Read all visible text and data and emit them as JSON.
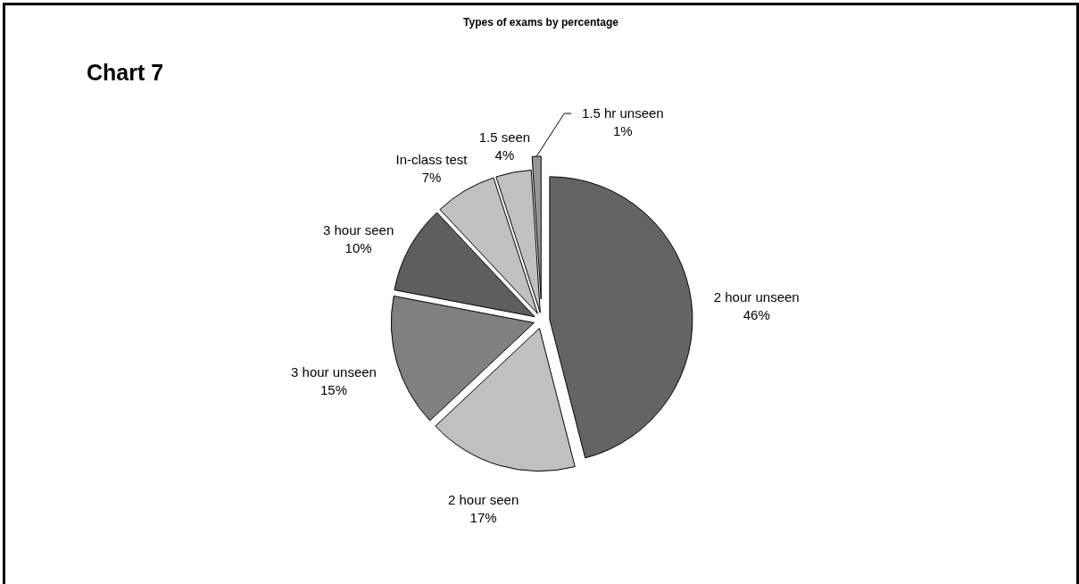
{
  "chart_data": {
    "type": "pie",
    "title": "Types of exams by percentage",
    "annotations": [
      "Chart 7"
    ],
    "categories": [
      "2 hour unseen",
      "2 hour seen",
      "3 hour unseen",
      "3 hour seen",
      "In-class test",
      "1.5 seen",
      "1.5 hr unseen"
    ],
    "values": [
      46,
      17,
      15,
      10,
      7,
      4,
      1
    ],
    "colors": [
      "#646464",
      "#c0c0c0",
      "#808080",
      "#5e5e5e",
      "#c0c0c0",
      "#c0c0c0",
      "#969696"
    ],
    "value_labels": [
      "46%",
      "17%",
      "15%",
      "10%",
      "7%",
      "4%",
      "1%"
    ]
  }
}
